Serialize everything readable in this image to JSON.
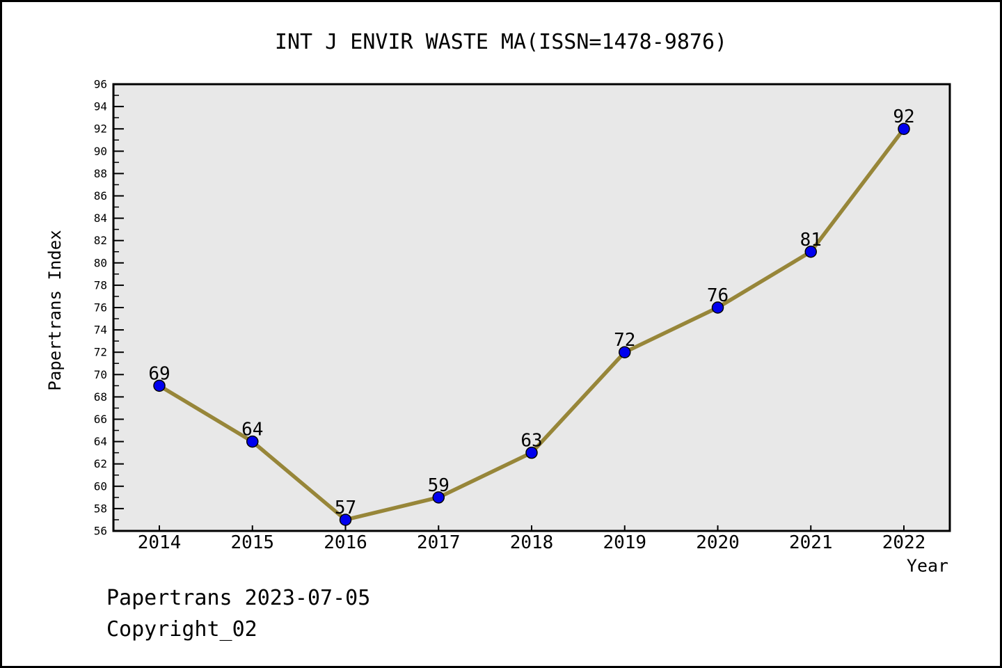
{
  "window": {
    "background": "#ffffff",
    "border_color": "#000000"
  },
  "title": "INT J ENVIR WASTE MA(ISSN=1478-9876)",
  "footer": {
    "line1": "Papertrans 2023-07-05",
    "line2": "Copyright_02"
  },
  "chart_data": {
    "type": "line",
    "title": "INT J ENVIR WASTE MA(ISSN=1478-9876)",
    "x": [
      "2014",
      "2015",
      "2016",
      "2017",
      "2018",
      "2019",
      "2020",
      "2021",
      "2022"
    ],
    "series": [
      {
        "name": "Papertrans Index",
        "values": [
          69,
          64,
          57,
          59,
          63,
          72,
          76,
          81,
          92
        ]
      }
    ],
    "point_labels": [
      "69",
      "64",
      "57",
      "59",
      "63",
      "72",
      "76",
      "81",
      "92"
    ],
    "xlabel": "Year",
    "ylabel": "Papertrans Index",
    "ylim": [
      56,
      96
    ],
    "ytick_step": 2,
    "yminor_step": 1,
    "grid": false,
    "legend_position": "none",
    "colors": {
      "line": "#978639",
      "marker_fill": "#0000ee",
      "marker_edge": "#000000",
      "plot_bg": "#e8e8e8",
      "axis": "#000000",
      "text": "#000000"
    }
  }
}
